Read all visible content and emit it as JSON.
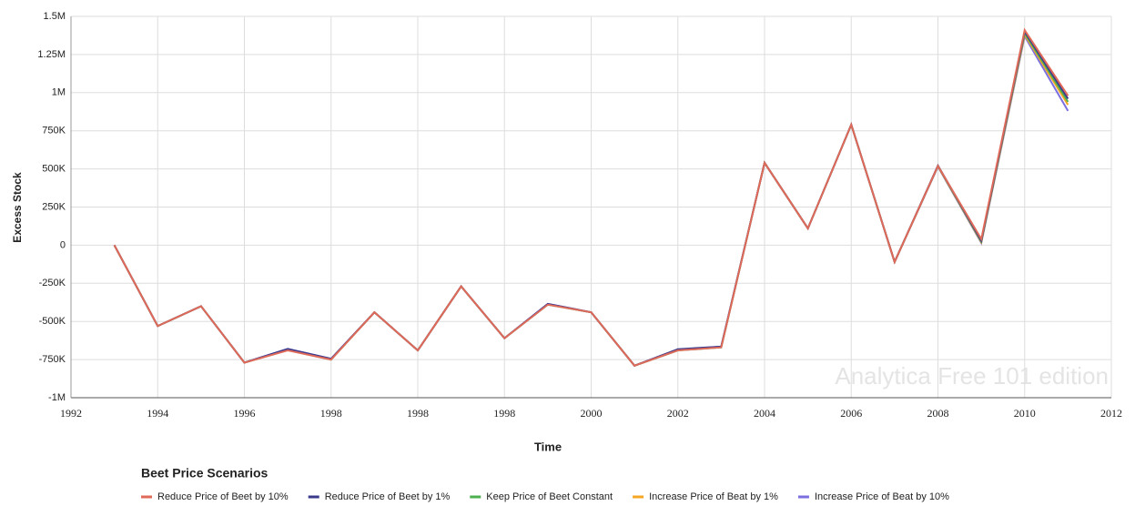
{
  "chart_data": {
    "type": "line",
    "x_label": "Time",
    "y_label": "Excess Stock",
    "watermark": "Analytica Free 101 edition",
    "legend_title": "Beet Price Scenarios",
    "x": [
      1993,
      1994,
      1995,
      1996,
      1997,
      1998,
      1999,
      2000,
      2001,
      2002,
      2003,
      2004,
      2005,
      2006,
      2007,
      2008,
      2009,
      2010,
      2011,
      2012,
      2013,
      2014,
      2015
    ],
    "xlim": [
      1992,
      2016
    ],
    "xticks": [
      1992,
      1994,
      1996,
      1998,
      {
        "value": 2000,
        "label": "1998"
      },
      {
        "value": 2002,
        "label": "1998"
      },
      {
        "value": 2004,
        "label": "2000"
      },
      {
        "value": 2006,
        "label": "2002"
      },
      {
        "value": 2008,
        "label": "2004"
      },
      {
        "value": 2010,
        "label": "2006"
      },
      {
        "value": 2012,
        "label": "2008"
      },
      {
        "value": 2014,
        "label": "2010"
      },
      {
        "value": 2016,
        "label": "2012"
      }
    ],
    "ylim": [
      -1000000,
      1500000
    ],
    "yticks": [
      {
        "value": 1500000,
        "label": "1.5M"
      },
      {
        "value": 1250000,
        "label": "1.25M"
      },
      {
        "value": 1000000,
        "label": "1M"
      },
      {
        "value": 750000,
        "label": "750K"
      },
      {
        "value": 500000,
        "label": "500K"
      },
      {
        "value": 250000,
        "label": "250K"
      },
      0,
      {
        "value": -250000,
        "label": "-250K"
      },
      {
        "value": -500000,
        "label": "-500K"
      },
      {
        "value": -750000,
        "label": "-750K"
      },
      {
        "value": -1000000,
        "label": "-1M"
      }
    ],
    "grid": true,
    "series": [
      {
        "name": "Increase Price of Beat by 10%",
        "color": "#7b6fe0",
        "values": [
          0,
          -530000,
          -400000,
          -770000,
          -680000,
          -745000,
          -440000,
          -690000,
          -270000,
          -610000,
          -385000,
          -440000,
          -790000,
          -685000,
          -665000,
          540000,
          110000,
          790000,
          -110000,
          515000,
          15000,
          1370000,
          880000
        ]
      },
      {
        "name": "Increase Price of Beat by 1%",
        "color": "#f5a623",
        "values": [
          0,
          -530000,
          -400000,
          -770000,
          -685000,
          -748000,
          -440000,
          -690000,
          -270000,
          -610000,
          -388000,
          -440000,
          -790000,
          -688000,
          -668000,
          540000,
          110000,
          790000,
          -110000,
          518000,
          20000,
          1380000,
          920000
        ]
      },
      {
        "name": "Keep Price of Beet Constant",
        "color": "#4caf50",
        "values": [
          0,
          -530000,
          -400000,
          -770000,
          -688000,
          -750000,
          -440000,
          -690000,
          -270000,
          -610000,
          -390000,
          -440000,
          -790000,
          -690000,
          -670000,
          540000,
          110000,
          790000,
          -110000,
          520000,
          25000,
          1390000,
          940000
        ]
      },
      {
        "name": "Reduce Price of Beet by 1%",
        "color": "#3a3a8c",
        "values": [
          0,
          -530000,
          -400000,
          -770000,
          -680000,
          -745000,
          -440000,
          -690000,
          -270000,
          -610000,
          -385000,
          -440000,
          -790000,
          -682000,
          -665000,
          540000,
          110000,
          790000,
          -110000,
          522000,
          30000,
          1400000,
          960000
        ]
      },
      {
        "name": "Reduce Price of Beet by 10%",
        "color": "#e06a5a",
        "values": [
          0,
          -530000,
          -400000,
          -770000,
          -690000,
          -750000,
          -440000,
          -690000,
          -270000,
          -610000,
          -390000,
          -440000,
          -790000,
          -690000,
          -670000,
          540000,
          110000,
          790000,
          -110000,
          520000,
          40000,
          1410000,
          980000
        ]
      }
    ],
    "legend_order": [
      4,
      3,
      2,
      1,
      0
    ]
  }
}
